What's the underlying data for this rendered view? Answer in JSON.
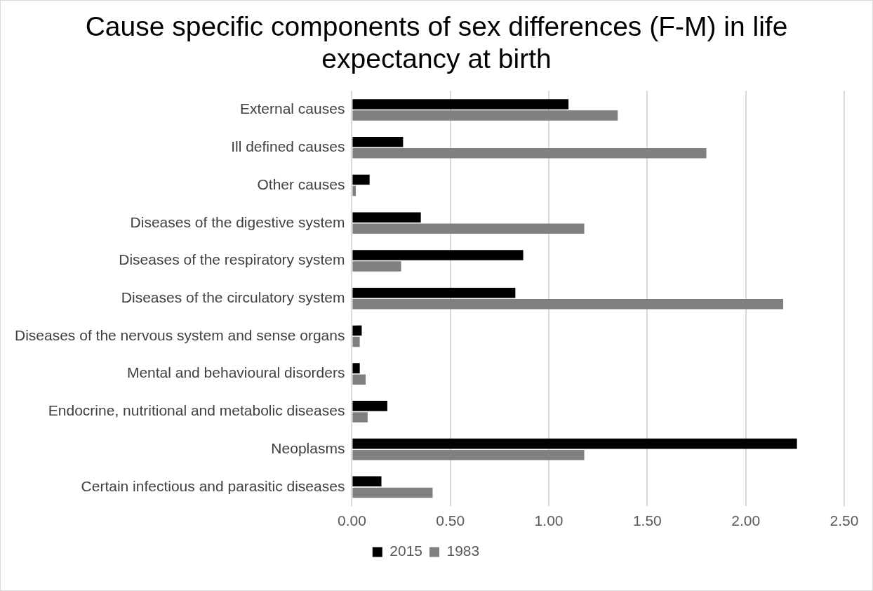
{
  "chart_data": {
    "type": "bar",
    "orientation": "horizontal",
    "title": "Cause specific components of sex differences (F-M) in life expectancy at birth",
    "categories": [
      "External causes",
      "Ill defined causes",
      "Other causes",
      "Diseases of the digestive system",
      "Diseases of the respiratory system",
      "Diseases of the circulatory system",
      "Diseases of the nervous system and sense organs",
      "Mental and behavioural disorders",
      "Endocrine, nutritional and metabolic diseases",
      "Neoplasms",
      "Certain infectious and parasitic diseases"
    ],
    "series": [
      {
        "name": "2015",
        "color": "#000000",
        "values": [
          1.1,
          0.26,
          0.09,
          0.35,
          0.87,
          0.83,
          0.05,
          0.04,
          0.18,
          2.26,
          0.15
        ]
      },
      {
        "name": "1983",
        "color": "#808080",
        "values": [
          1.35,
          1.8,
          0.02,
          1.18,
          0.25,
          2.19,
          0.04,
          0.07,
          0.08,
          1.18,
          0.41
        ]
      }
    ],
    "xlim": [
      0,
      2.5
    ],
    "xticks": [
      {
        "value": 0,
        "label": "0.00"
      },
      {
        "value": 0.5,
        "label": "0.50"
      },
      {
        "value": 1,
        "label": "1.00"
      },
      {
        "value": 1.5,
        "label": "1.50"
      },
      {
        "value": 2,
        "label": "2.00"
      },
      {
        "value": 2.5,
        "label": "2.50"
      }
    ],
    "grid": "x",
    "legend": "bottom"
  }
}
